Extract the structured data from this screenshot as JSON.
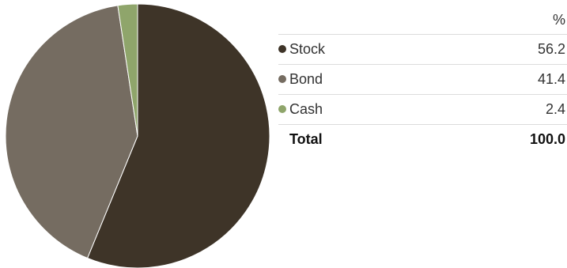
{
  "chart_data": {
    "type": "pie",
    "value_header": "%",
    "slices": [
      {
        "label": "Stock",
        "value": 56.2,
        "display": "56.2",
        "color": "#3e3428"
      },
      {
        "label": "Bond",
        "value": 41.4,
        "display": "41.4",
        "color": "#756c61"
      },
      {
        "label": "Cash",
        "value": 2.4,
        "display": "2.4",
        "color": "#8fa56b"
      }
    ],
    "total": {
      "label": "Total",
      "display": "100.0"
    }
  }
}
